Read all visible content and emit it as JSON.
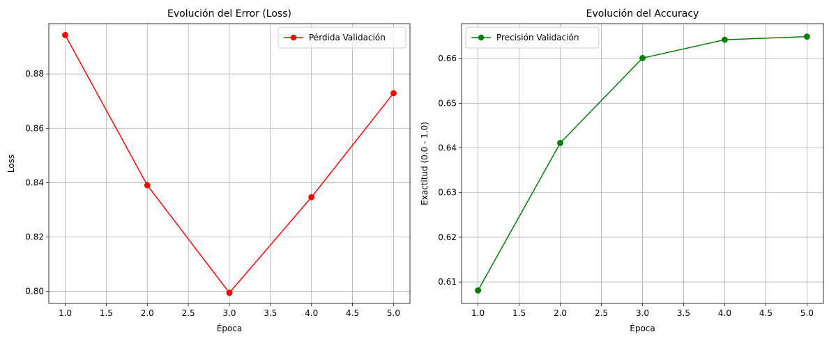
{
  "chart_data": [
    {
      "type": "line",
      "title": "Evolución del Error (Loss)",
      "xlabel": "Época",
      "ylabel": "Loss",
      "xlim": [
        0.8,
        5.2
      ],
      "ylim": [
        0.7955,
        0.8985
      ],
      "xticks": [
        1.0,
        1.5,
        2.0,
        2.5,
        3.0,
        3.5,
        4.0,
        4.5,
        5.0
      ],
      "xtick_labels": [
        "1.0",
        "1.5",
        "2.0",
        "2.5",
        "3.0",
        "3.5",
        "4.0",
        "4.5",
        "5.0"
      ],
      "yticks": [
        0.8,
        0.82,
        0.84,
        0.86,
        0.88
      ],
      "ytick_labels": [
        "0.80",
        "0.82",
        "0.84",
        "0.86",
        "0.88"
      ],
      "grid": true,
      "legend_position": "top-right",
      "series": [
        {
          "name": "Pérdida Validación",
          "color": "#ff0000",
          "marker": "circle",
          "x": [
            1,
            2,
            3,
            4,
            5
          ],
          "y": [
            0.8943,
            0.839,
            0.7994,
            0.8346,
            0.8729
          ]
        }
      ]
    },
    {
      "type": "line",
      "title": "Evolución del Accuracy",
      "xlabel": "Época",
      "ylabel": "Exactitud (0.0 - 1.0)",
      "xlim": [
        0.8,
        5.2
      ],
      "ylim": [
        0.6052,
        0.6678
      ],
      "xticks": [
        1.0,
        1.5,
        2.0,
        2.5,
        3.0,
        3.5,
        4.0,
        4.5,
        5.0
      ],
      "xtick_labels": [
        "1.0",
        "1.5",
        "2.0",
        "2.5",
        "3.0",
        "3.5",
        "4.0",
        "4.5",
        "5.0"
      ],
      "yticks": [
        0.61,
        0.62,
        0.63,
        0.64,
        0.65,
        0.66
      ],
      "ytick_labels": [
        "0.61",
        "0.62",
        "0.63",
        "0.64",
        "0.65",
        "0.66"
      ],
      "grid": true,
      "legend_position": "top-left",
      "series": [
        {
          "name": "Precisión Validación",
          "color": "#008000",
          "marker": "circle",
          "x": [
            1,
            2,
            3,
            4,
            5
          ],
          "y": [
            0.6081,
            0.6411,
            0.6601,
            0.6642,
            0.6649
          ]
        }
      ]
    }
  ]
}
